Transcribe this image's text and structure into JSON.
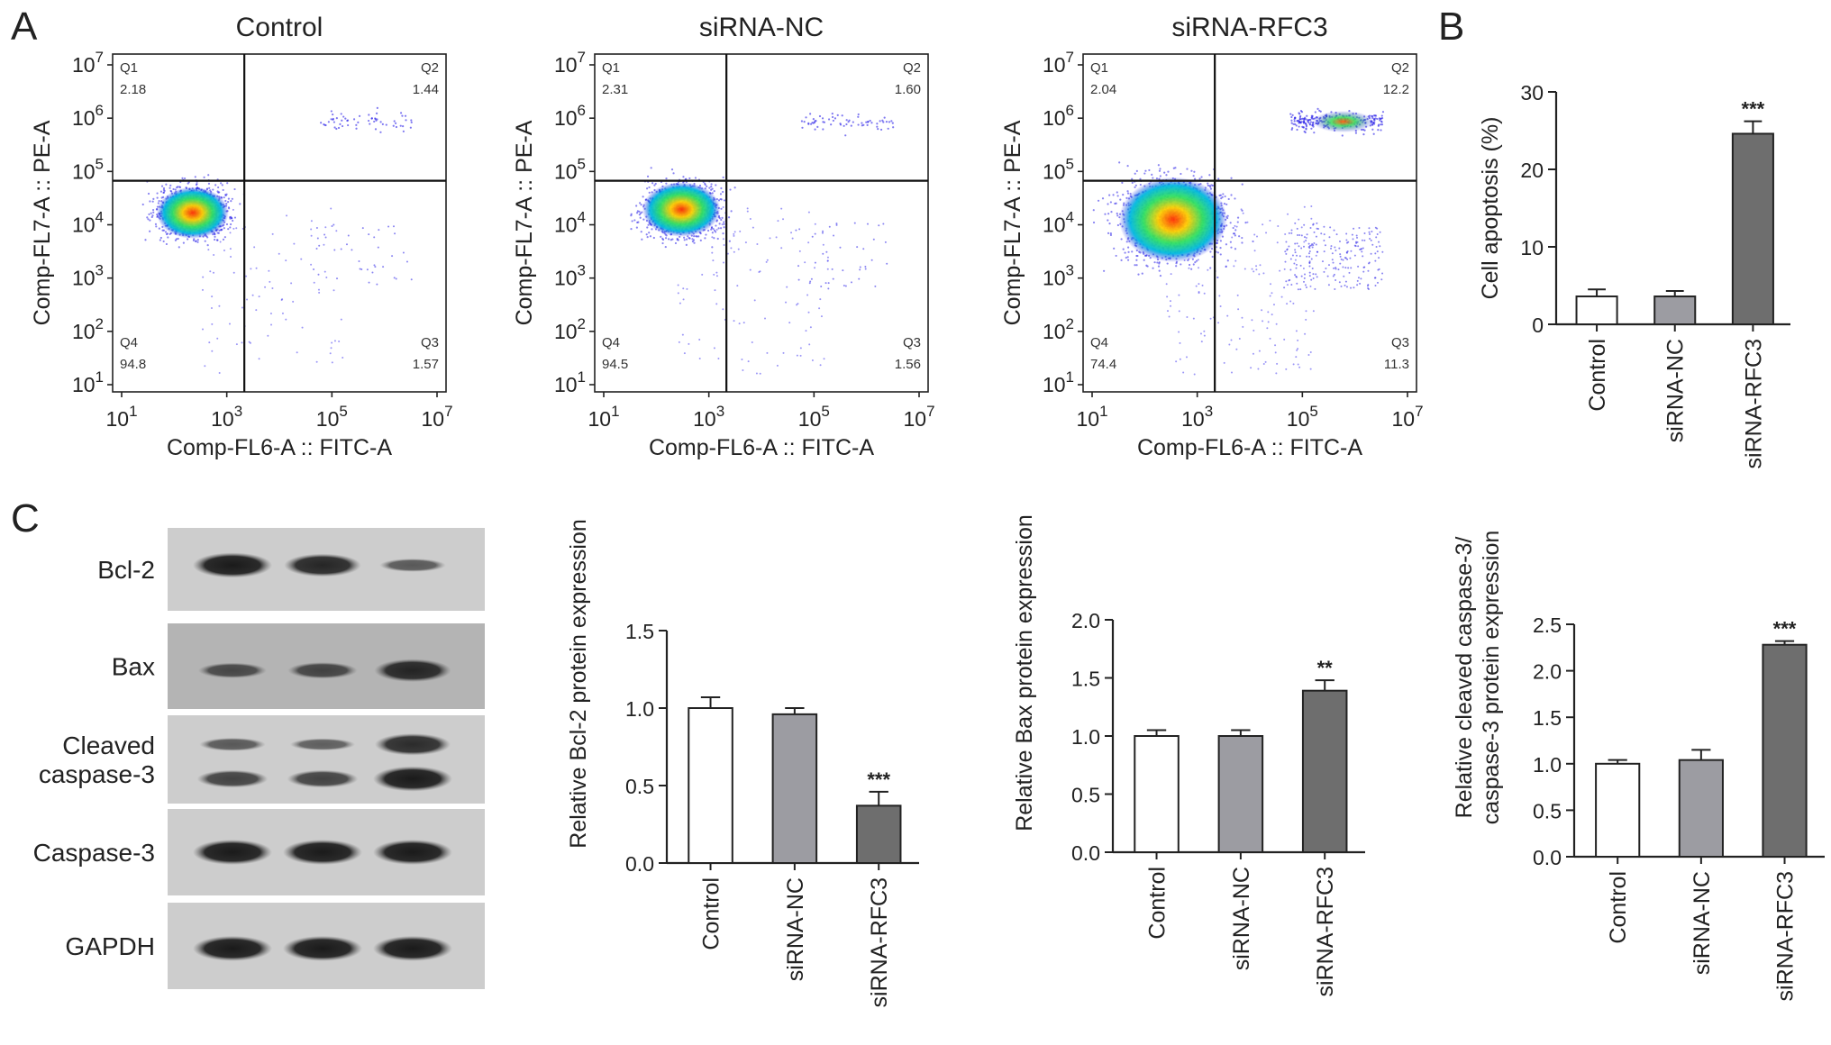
{
  "panel_letters": {
    "a": "A",
    "b": "B",
    "c": "C"
  },
  "flow": {
    "x_axis_label": "Comp-FL6-A :: FITC-A",
    "y_axis_label": "Comp-FL7-A :: PE-A",
    "tick_exponents": [
      "1",
      "3",
      "5",
      "7"
    ],
    "y_tick_exponents": [
      "1",
      "2",
      "3",
      "4",
      "5",
      "6",
      "7"
    ],
    "tick_base": "10",
    "plots": [
      {
        "title": "Control",
        "quadrants": {
          "q1": {
            "name": "Q1",
            "value": "2.18"
          },
          "q2": {
            "name": "Q2",
            "value": "1.44"
          },
          "q3": {
            "name": "Q3",
            "value": "1.57"
          },
          "q4": {
            "name": "Q4",
            "value": "94.8"
          }
        }
      },
      {
        "title": "siRNA-NC",
        "quadrants": {
          "q1": {
            "name": "Q1",
            "value": "2.31"
          },
          "q2": {
            "name": "Q2",
            "value": "1.60"
          },
          "q3": {
            "name": "Q3",
            "value": "1.56"
          },
          "q4": {
            "name": "Q4",
            "value": "94.5"
          }
        }
      },
      {
        "title": "siRNA-RFC3",
        "quadrants": {
          "q1": {
            "name": "Q1",
            "value": "2.04"
          },
          "q2": {
            "name": "Q2",
            "value": "12.2"
          },
          "q3": {
            "name": "Q3",
            "value": "11.3"
          },
          "q4": {
            "name": "Q4",
            "value": "74.4"
          }
        }
      }
    ]
  },
  "blots": {
    "rows": [
      {
        "label": "Bcl-2"
      },
      {
        "label": "Bax"
      },
      {
        "label": "Cleaved\ncaspase-3"
      },
      {
        "label": "Caspase-3"
      },
      {
        "label": "GAPDH"
      }
    ]
  },
  "colors": {
    "control_bar": "#ffffff",
    "sirna_nc_bar": "#9c9ca2",
    "sirna_rfc3_bar": "#6e6e6e",
    "flow_low_density": "#2a20e8",
    "flow_high_density": "#ff3000"
  },
  "chart_data": [
    {
      "id": "apoptosis",
      "type": "bar",
      "ylabel": "Cell apoptosis (%)",
      "ylim": [
        0,
        30
      ],
      "yticks": [
        "0",
        "10",
        "20",
        "30"
      ],
      "categories": [
        "Control",
        "siRNA-NC",
        "siRNA-RFC3"
      ],
      "values": [
        3.6,
        3.6,
        24.6
      ],
      "errors": [
        0.9,
        0.7,
        1.6
      ],
      "significance": [
        "",
        "",
        "***"
      ]
    },
    {
      "id": "bcl2",
      "type": "bar",
      "ylabel": "Relative Bcl-2 protein expression",
      "ylim": [
        0,
        1.5
      ],
      "yticks": [
        "0.0",
        "0.5",
        "1.0",
        "1.5"
      ],
      "categories": [
        "Control",
        "siRNA-NC",
        "siRNA-RFC3"
      ],
      "values": [
        1.0,
        0.96,
        0.37
      ],
      "errors": [
        0.07,
        0.04,
        0.09
      ],
      "significance": [
        "",
        "",
        "***"
      ]
    },
    {
      "id": "bax",
      "type": "bar",
      "ylabel": "Relative Bax protein expression",
      "ylim": [
        0,
        2.0
      ],
      "yticks": [
        "0.0",
        "0.5",
        "1.0",
        "1.5",
        "2.0"
      ],
      "categories": [
        "Control",
        "siRNA-NC",
        "siRNA-RFC3"
      ],
      "values": [
        1.0,
        1.0,
        1.39
      ],
      "errors": [
        0.05,
        0.05,
        0.09
      ],
      "significance": [
        "",
        "",
        "**"
      ]
    },
    {
      "id": "caspase",
      "type": "bar",
      "ylabel": [
        "Relative cleaved caspase-3/",
        "caspase-3 protein expression"
      ],
      "ylim": [
        0,
        2.5
      ],
      "yticks": [
        "0.0",
        "0.5",
        "1.0",
        "1.5",
        "2.0",
        "2.5"
      ],
      "categories": [
        "Control",
        "siRNA-NC",
        "siRNA-RFC3"
      ],
      "values": [
        1.0,
        1.04,
        2.28
      ],
      "errors": [
        0.04,
        0.11,
        0.04
      ],
      "significance": [
        "",
        "",
        "***"
      ]
    }
  ]
}
